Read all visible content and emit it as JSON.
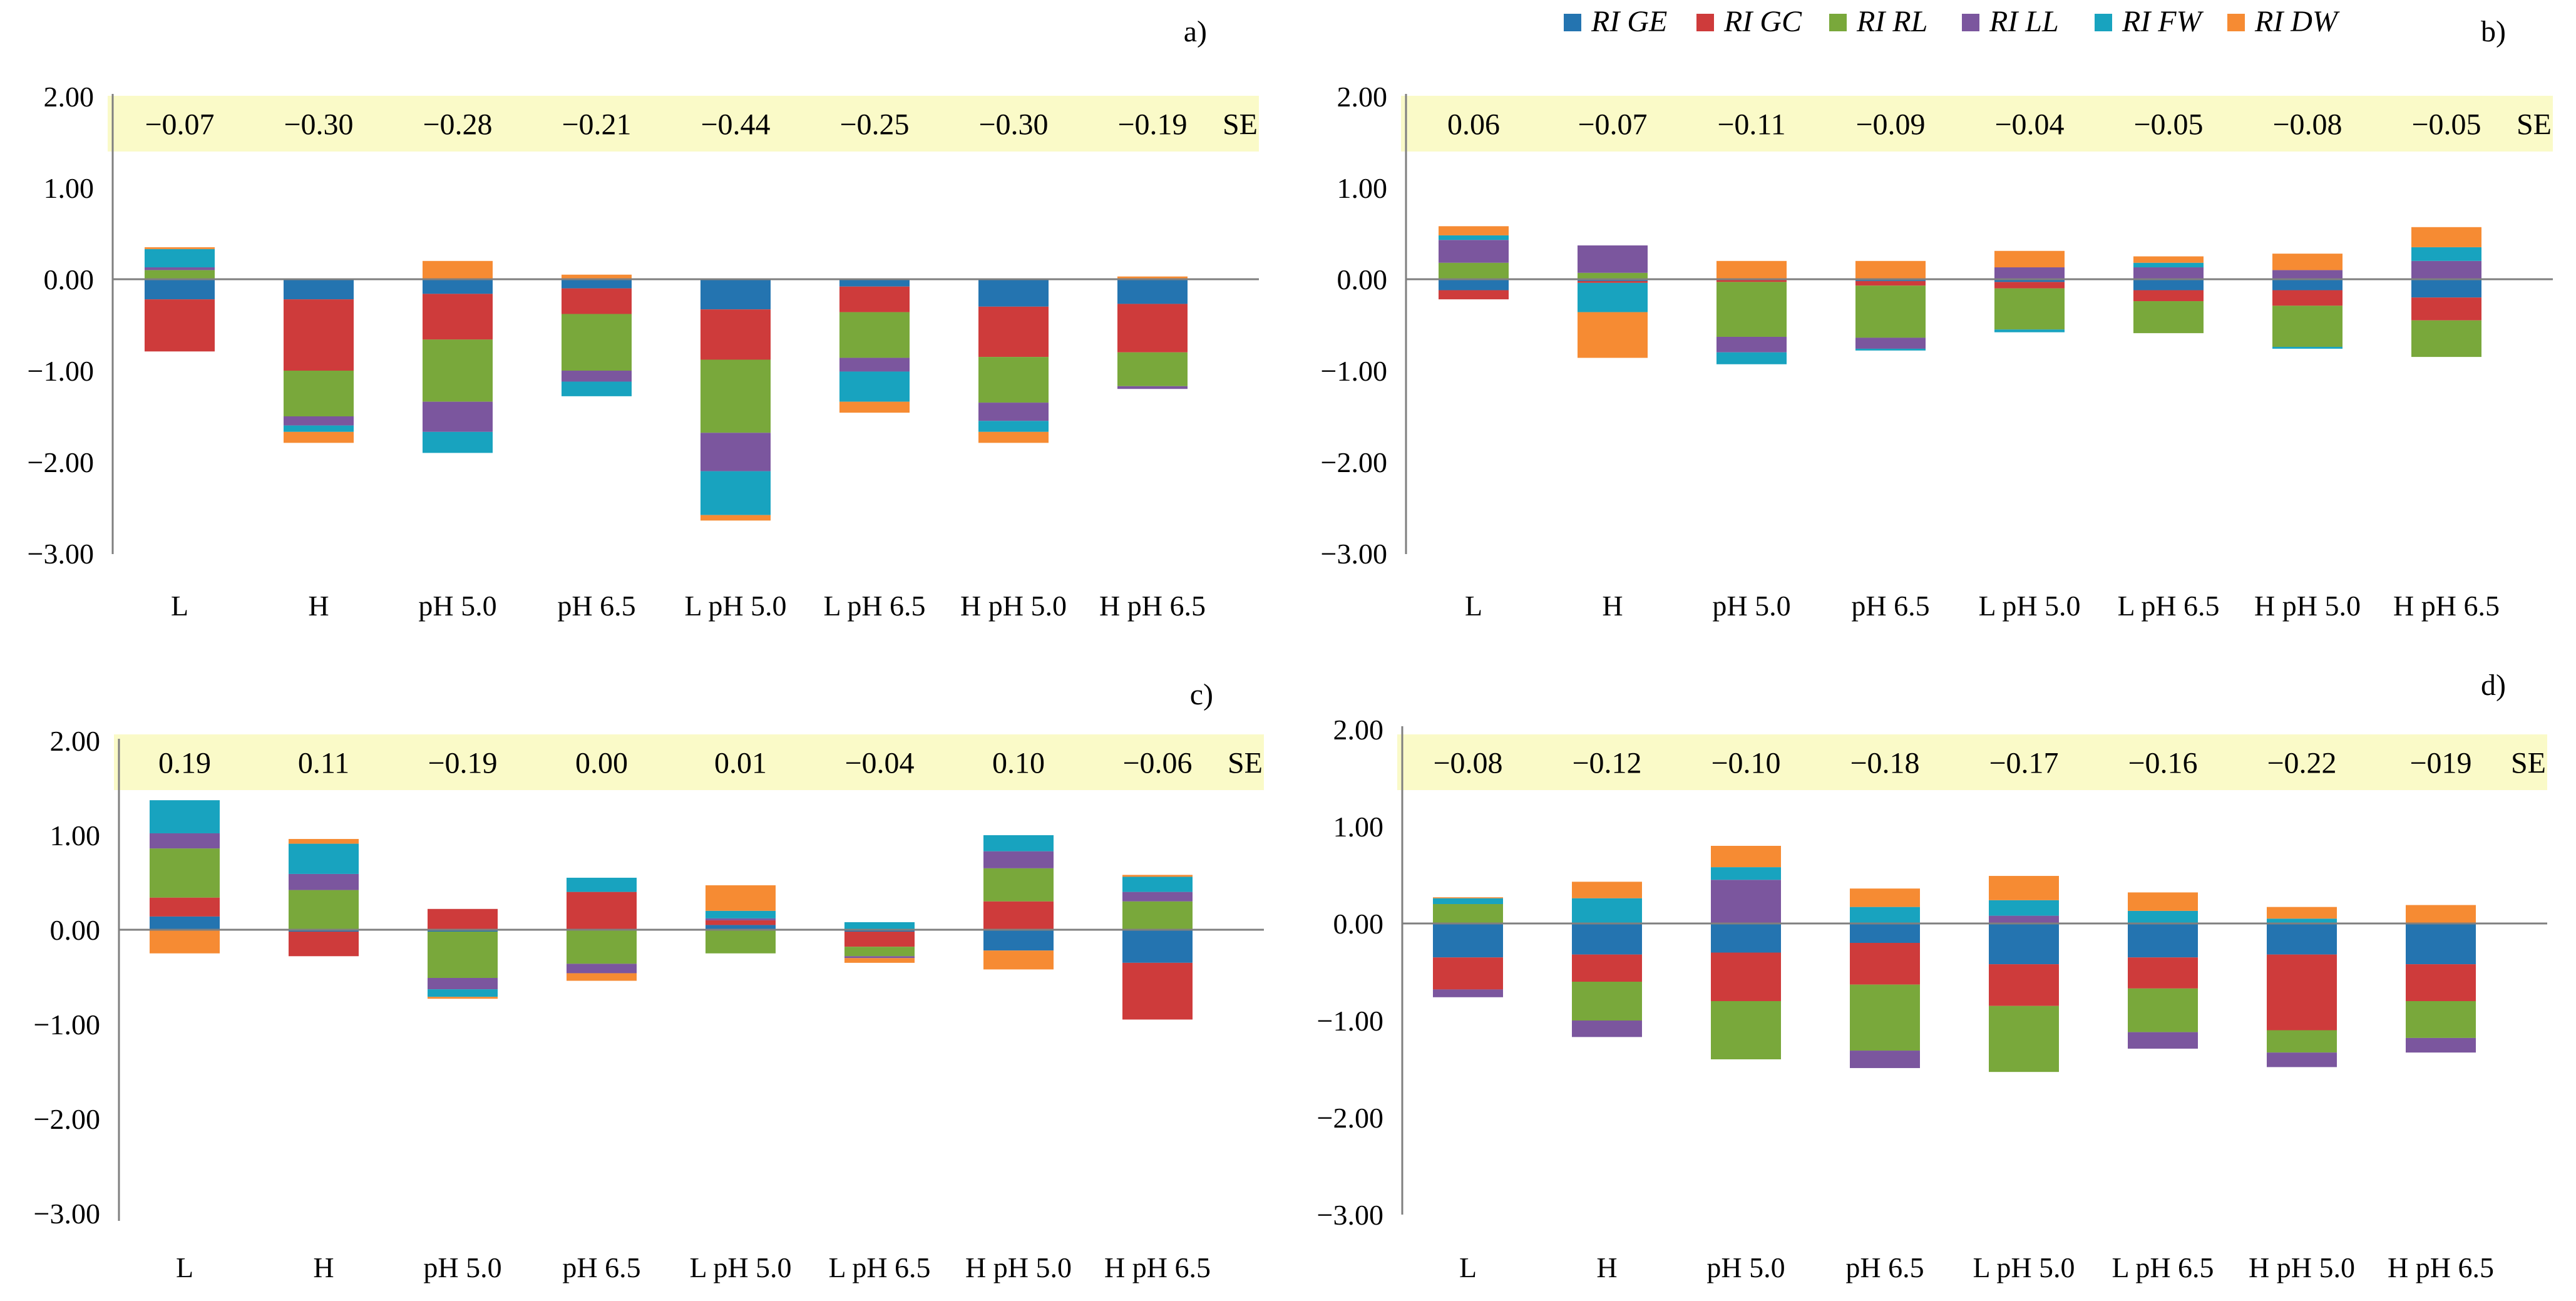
{
  "colors": {
    "RI GE": "#2474b0",
    "RI GC": "#ce3b3b",
    "RI RL": "#79a83b",
    "RI LL": "#7b569e",
    "RI FW": "#18a3bf",
    "RI DW": "#f68b33",
    "se_band": "#fafac8",
    "axis": "#7f7f7f"
  },
  "legend": [
    "RI GE",
    "RI GC",
    "RI RL",
    "RI LL",
    "RI FW",
    "RI DW"
  ],
  "chart_data": [
    {
      "type": "bar",
      "stacked": true,
      "panel": "a)",
      "se_label": "SE",
      "categories": [
        "L",
        "H",
        "pH 5.0",
        "pH 6.5",
        "L pH 5.0",
        "L pH 6.5",
        "H pH 5.0",
        "H pH 6.5"
      ],
      "se_values": [
        "−0.07",
        "−0.30",
        "−0.28",
        "−0.21",
        "−0.44",
        "−0.25",
        "−0.30",
        "−0.19"
      ],
      "yticks": [
        "2.00",
        "1.00",
        "0.00",
        "−1.00",
        "−2.00",
        "−3.00"
      ],
      "ylim": [
        -3,
        2
      ],
      "series": [
        {
          "name": "RI GE",
          "values": [
            -0.22,
            -0.22,
            -0.16,
            -0.1,
            -0.33,
            -0.08,
            -0.3,
            -0.27
          ]
        },
        {
          "name": "RI GC",
          "values": [
            -0.57,
            -0.78,
            -0.5,
            -0.28,
            -0.55,
            -0.28,
            -0.55,
            -0.53
          ]
        },
        {
          "name": "RI RL",
          "values": [
            0.1,
            -0.5,
            -0.68,
            -0.62,
            -0.8,
            -0.5,
            -0.5,
            -0.37
          ]
        },
        {
          "name": "RI LL",
          "values": [
            0.03,
            -0.1,
            -0.33,
            -0.12,
            -0.42,
            -0.15,
            -0.2,
            -0.03
          ]
        },
        {
          "name": "RI FW",
          "values": [
            0.2,
            -0.07,
            -0.23,
            -0.16,
            -0.48,
            -0.33,
            -0.12,
            0.0
          ]
        },
        {
          "name": "RI DW",
          "values": [
            0.02,
            -0.12,
            0.2,
            0.05,
            -0.06,
            -0.12,
            -0.12,
            0.03
          ]
        }
      ]
    },
    {
      "type": "bar",
      "stacked": true,
      "panel": "b)",
      "se_label": "SE",
      "categories": [
        "L",
        "H",
        "pH 5.0",
        "pH 6.5",
        "L pH 5.0",
        "L pH 6.5",
        "H pH 5.0",
        "H pH 6.5"
      ],
      "se_values": [
        "0.06",
        "−0.07",
        "−0.11",
        "−0.09",
        "−0.04",
        "−0.05",
        "−0.08",
        "−0.05"
      ],
      "yticks": [
        "2.00",
        "1.00",
        "0.00",
        "−1.00",
        "−2.00",
        "−3.00"
      ],
      "ylim": [
        -3,
        2
      ],
      "series": [
        {
          "name": "RI GE",
          "values": [
            -0.12,
            -0.02,
            -0.01,
            -0.02,
            -0.03,
            -0.12,
            -0.12,
            -0.2
          ]
        },
        {
          "name": "RI GC",
          "values": [
            -0.1,
            -0.02,
            -0.02,
            -0.05,
            -0.07,
            -0.12,
            -0.17,
            -0.25
          ]
        },
        {
          "name": "RI RL",
          "values": [
            0.18,
            0.07,
            -0.6,
            -0.57,
            -0.45,
            -0.35,
            -0.45,
            -0.4
          ]
        },
        {
          "name": "RI LL",
          "values": [
            0.25,
            0.3,
            -0.17,
            -0.12,
            0.13,
            0.13,
            0.1,
            0.2
          ]
        },
        {
          "name": "RI FW",
          "values": [
            0.05,
            -0.32,
            -0.13,
            -0.02,
            -0.03,
            0.05,
            -0.02,
            0.15
          ]
        },
        {
          "name": "RI DW",
          "values": [
            0.1,
            -0.5,
            0.2,
            0.2,
            0.18,
            0.07,
            0.18,
            0.22
          ]
        }
      ]
    },
    {
      "type": "bar",
      "stacked": true,
      "panel": "c)",
      "se_label": "SE",
      "categories": [
        "L",
        "H",
        "pH 5.0",
        "pH 6.5",
        "L pH 5.0",
        "L pH 6.5",
        "H pH 5.0",
        "H pH 6.5"
      ],
      "se_values": [
        "0.19",
        "0.11",
        "−0.19",
        "0.00",
        "0.01",
        "−0.04",
        "0.10",
        "−0.06"
      ],
      "yticks": [
        "2.00",
        "1.00",
        "0.00",
        "−1.00",
        "−2.00",
        "−3.00"
      ],
      "ylim": [
        -3,
        2
      ],
      "series": [
        {
          "name": "RI GE",
          "values": [
            0.14,
            -0.02,
            -0.02,
            -0.01,
            0.05,
            -0.02,
            -0.22,
            -0.35
          ]
        },
        {
          "name": "RI GC",
          "values": [
            0.2,
            -0.26,
            0.22,
            0.4,
            0.05,
            -0.16,
            0.3,
            -0.6
          ]
        },
        {
          "name": "RI RL",
          "values": [
            0.52,
            0.42,
            -0.49,
            -0.35,
            -0.25,
            -0.1,
            0.35,
            0.3
          ]
        },
        {
          "name": "RI LL",
          "values": [
            0.16,
            0.17,
            -0.12,
            -0.1,
            0.02,
            -0.02,
            0.18,
            0.1
          ]
        },
        {
          "name": "RI FW",
          "values": [
            0.35,
            0.32,
            -0.08,
            0.15,
            0.08,
            0.08,
            0.17,
            0.16
          ]
        },
        {
          "name": "RI DW",
          "values": [
            -0.25,
            0.05,
            -0.02,
            -0.08,
            0.27,
            -0.05,
            -0.2,
            0.02
          ]
        }
      ]
    },
    {
      "type": "bar",
      "stacked": true,
      "panel": "d)",
      "se_label": "SE",
      "categories": [
        "L",
        "H",
        "pH 5.0",
        "pH 6.5",
        "L pH 5.0",
        "L pH 6.5",
        "H pH 5.0",
        "H pH 6.5"
      ],
      "se_values": [
        "−0.08",
        "−0.12",
        "−0.10",
        "−0.18",
        "−0.17",
        "−0.16",
        "−0.22",
        "−019"
      ],
      "yticks": [
        "2.00",
        "1.00",
        "0.00",
        "−1.00",
        "−2.00",
        "−3.00"
      ],
      "ylim": [
        -3,
        2
      ],
      "series": [
        {
          "name": "RI GE",
          "values": [
            -0.35,
            -0.32,
            -0.3,
            -0.2,
            -0.42,
            -0.35,
            -0.32,
            -0.42
          ]
        },
        {
          "name": "RI GC",
          "values": [
            -0.33,
            -0.28,
            -0.5,
            -0.43,
            -0.43,
            -0.32,
            -0.78,
            -0.38
          ]
        },
        {
          "name": "RI RL",
          "values": [
            0.2,
            -0.4,
            -0.6,
            -0.68,
            -0.68,
            -0.45,
            -0.23,
            -0.38
          ]
        },
        {
          "name": "RI LL",
          "values": [
            -0.08,
            -0.17,
            0.45,
            -0.18,
            0.08,
            -0.17,
            -0.15,
            -0.15
          ]
        },
        {
          "name": "RI FW",
          "values": [
            0.06,
            0.26,
            0.13,
            0.17,
            0.16,
            0.13,
            0.05,
            0.0
          ]
        },
        {
          "name": "RI DW",
          "values": [
            0.01,
            0.17,
            0.22,
            0.19,
            0.25,
            0.19,
            0.12,
            0.19
          ]
        }
      ]
    }
  ]
}
